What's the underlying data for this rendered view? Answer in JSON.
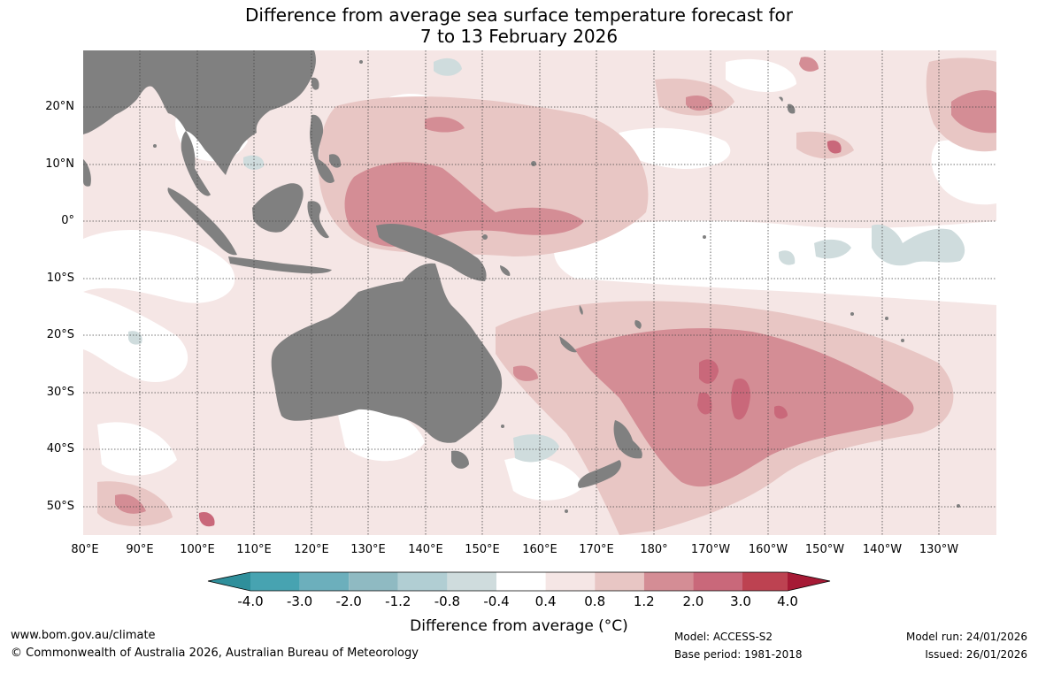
{
  "title": {
    "line1": "Difference from average sea surface temperature forecast for",
    "line2": "7 to 13 February 2026"
  },
  "map": {
    "lat_labels": [
      "20°N",
      "10°N",
      "0°",
      "10°S",
      "20°S",
      "30°S",
      "40°S",
      "50°S"
    ],
    "lon_labels": [
      "80°E",
      "90°E",
      "100°E",
      "110°E",
      "120°E",
      "130°E",
      "140°E",
      "150°E",
      "160°E",
      "170°E",
      "180°",
      "170°W",
      "160°W",
      "150°W",
      "140°W",
      "130°W"
    ],
    "land_color": "#808080",
    "ocean_color": "#ffffff"
  },
  "colorbar": {
    "ticks": [
      "-4.0",
      "-3.0",
      "-2.0",
      "-1.2",
      "-0.8",
      "-0.4",
      "0.4",
      "0.8",
      "1.2",
      "2.0",
      "3.0",
      "4.0"
    ],
    "colors": [
      "#2f8f9b",
      "#47a3b1",
      "#6cafbc",
      "#8fbac2",
      "#b1ced3",
      "#cfdcdd",
      "#ffffff",
      "#f5e6e5",
      "#e8c6c4",
      "#d48d95",
      "#c9687a",
      "#bd4251",
      "#a61a35"
    ],
    "title": "Difference from average (°C)"
  },
  "footer": {
    "website": "www.bom.gov.au/climate",
    "copyright": "© Commonwealth of Australia 2026, Australian Bureau of Meteorology",
    "model": "Model: ACCESS-S2",
    "base_period": "Base period: 1981-2018",
    "model_run": "Model run: 24/01/2026",
    "issued": "Issued: 26/01/2026"
  }
}
